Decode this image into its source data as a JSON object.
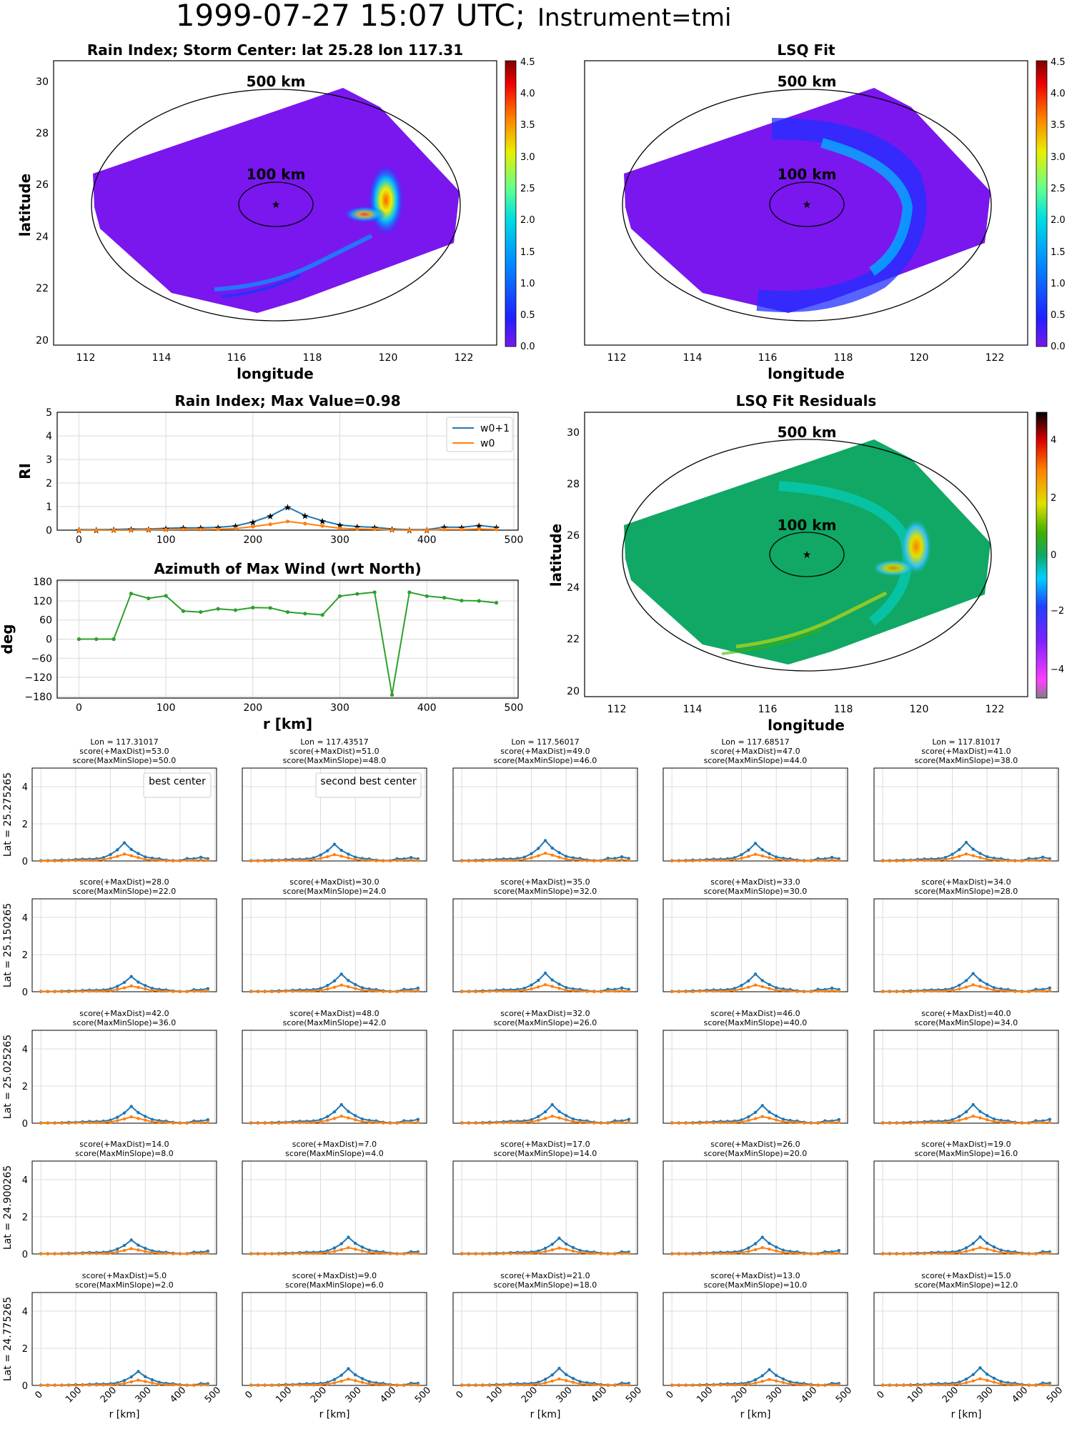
{
  "figure": {
    "title_main": "1999-07-27 15:07 UTC;",
    "title_instrument": "Instrument=tmi"
  },
  "maps": {
    "rain_index": {
      "title": "Rain Index; Storm Center: lat 25.28 lon 117.31",
      "xlabel": "longitude",
      "ylabel": "latitude",
      "circle_labels": [
        "500 km",
        "100 km"
      ],
      "colorbar_ticks": [
        "0.0",
        "0.5",
        "1.0",
        "1.5",
        "2.0",
        "2.5",
        "3.0",
        "3.5",
        "4.0",
        "4.5"
      ]
    },
    "lsq_fit": {
      "title": "LSQ Fit",
      "xlabel": "longitude",
      "circle_labels": [
        "500 km",
        "100 km"
      ],
      "colorbar_ticks": [
        "0.0",
        "0.5",
        "1.0",
        "1.5",
        "2.0",
        "2.5",
        "3.0",
        "3.5",
        "4.0",
        "4.5"
      ]
    },
    "residuals": {
      "title": "LSQ Fit Residuals",
      "xlabel": "longitude",
      "ylabel": "latitude",
      "circle_labels": [
        "500 km",
        "100 km"
      ],
      "colorbar_ticks": [
        "−4",
        "−2",
        "0",
        "2",
        "4"
      ]
    },
    "lon_ticks": [
      "112",
      "114",
      "116",
      "118",
      "120",
      "122"
    ],
    "lat_ticks": [
      "20",
      "22",
      "24",
      "26",
      "28",
      "30"
    ],
    "colors": {
      "rain_background": "#7a17ee",
      "residual_background": "#10a864"
    }
  },
  "chart_data": [
    {
      "type": "line",
      "title": "Rain Index; Max Value=0.98",
      "ylabel": "RI",
      "xlim": [
        -25,
        505
      ],
      "ylim": [
        0,
        5
      ],
      "x_ticks": [
        "0",
        "100",
        "200",
        "300",
        "400",
        "500"
      ],
      "y_ticks": [
        "0",
        "1",
        "2",
        "3",
        "4",
        "5"
      ],
      "legend": "top-right",
      "grid": true,
      "x": [
        0,
        20,
        40,
        60,
        80,
        100,
        120,
        140,
        160,
        180,
        200,
        220,
        240,
        260,
        280,
        300,
        320,
        340,
        360,
        380,
        400,
        420,
        440,
        460,
        480
      ],
      "series": [
        {
          "name": "w0+1",
          "color": "#1f77b4",
          "values": [
            0.02,
            0.02,
            0.03,
            0.05,
            0.05,
            0.08,
            0.1,
            0.1,
            0.12,
            0.18,
            0.35,
            0.6,
            0.98,
            0.62,
            0.4,
            0.22,
            0.15,
            0.12,
            0.05,
            0.02,
            0.02,
            0.13,
            0.12,
            0.2,
            0.12
          ]
        },
        {
          "name": "w0",
          "color": "#ff7f0e",
          "values": [
            0.0,
            0.0,
            0.0,
            0.0,
            0.02,
            0.02,
            0.03,
            0.03,
            0.04,
            0.07,
            0.15,
            0.25,
            0.37,
            0.28,
            0.18,
            0.08,
            0.05,
            0.04,
            0.01,
            0.0,
            0.0,
            0.03,
            0.03,
            0.05,
            0.03
          ]
        }
      ]
    },
    {
      "type": "line",
      "title": "Azimuth of Max Wind (wrt North)",
      "ylabel": "deg",
      "xlabel": "r [km]",
      "xlim": [
        -25,
        505
      ],
      "ylim": [
        -185,
        185
      ],
      "x_ticks": [
        "0",
        "100",
        "200",
        "300",
        "400",
        "500"
      ],
      "y_ticks": [
        "−180",
        "−120",
        "−60",
        "0",
        "60",
        "120",
        "180"
      ],
      "grid": true,
      "x": [
        0,
        20,
        40,
        60,
        80,
        100,
        120,
        140,
        160,
        180,
        200,
        220,
        240,
        260,
        280,
        300,
        320,
        340,
        360,
        380,
        400,
        420,
        440,
        460,
        480
      ],
      "series": [
        {
          "color": "#2ca02c",
          "values": [
            0,
            0,
            0,
            143,
            128,
            136,
            88,
            85,
            95,
            91,
            99,
            98,
            85,
            80,
            76,
            135,
            142,
            147,
            -175,
            147,
            135,
            130,
            121,
            120,
            114
          ]
        }
      ]
    },
    {
      "type": "line",
      "grid_of_small_multiples": true,
      "x_ticks": [
        "0",
        "100",
        "200",
        "300",
        "400",
        "500"
      ],
      "y_ticks": [
        "0",
        "2",
        "4"
      ],
      "xlabel": "r [km]",
      "ylim": [
        0,
        5
      ],
      "x": [
        0,
        20,
        40,
        60,
        80,
        100,
        120,
        140,
        160,
        180,
        200,
        220,
        240,
        260,
        280,
        300,
        320,
        340,
        360,
        380,
        400,
        420,
        440,
        460,
        480
      ],
      "col_headers": [
        {
          "lon_label": "Lon = 117.31017",
          "color": "#800080"
        },
        {
          "lon_label": "Lon = 117.43517",
          "color": "#ff0000"
        },
        {
          "lon_label": "Lon = 117.56017",
          "color": "#000000"
        },
        {
          "lon_label": "Lon = 117.68517",
          "color": "#000000"
        },
        {
          "lon_label": "Lon = 117.81017",
          "color": "#000000"
        }
      ],
      "row_labels": [
        "Lat = 25.275265",
        "Lat = 25.150265",
        "Lat = 25.025265",
        "Lat = 24.900265",
        "Lat = 24.775265"
      ],
      "annotations": [
        "best center",
        "second best center"
      ],
      "scores": [
        [
          [
            "score(+MaxDist)=53.0",
            "score(MaxMinSlope)=50.0"
          ],
          [
            "score(+MaxDist)=51.0",
            "score(MaxMinSlope)=48.0"
          ],
          [
            "score(+MaxDist)=49.0",
            "score(MaxMinSlope)=46.0"
          ],
          [
            "score(+MaxDist)=47.0",
            "score(MaxMinSlope)=44.0"
          ],
          [
            "score(+MaxDist)=41.0",
            "score(MaxMinSlope)=38.0"
          ]
        ],
        [
          [
            "score(+MaxDist)=28.0",
            "score(MaxMinSlope)=22.0"
          ],
          [
            "score(+MaxDist)=30.0",
            "score(MaxMinSlope)=24.0"
          ],
          [
            "score(+MaxDist)=35.0",
            "score(MaxMinSlope)=32.0"
          ],
          [
            "score(+MaxDist)=33.0",
            "score(MaxMinSlope)=30.0"
          ],
          [
            "score(+MaxDist)=34.0",
            "score(MaxMinSlope)=28.0"
          ]
        ],
        [
          [
            "score(+MaxDist)=42.0",
            "score(MaxMinSlope)=36.0"
          ],
          [
            "score(+MaxDist)=48.0",
            "score(MaxMinSlope)=42.0"
          ],
          [
            "score(+MaxDist)=32.0",
            "score(MaxMinSlope)=26.0"
          ],
          [
            "score(+MaxDist)=46.0",
            "score(MaxMinSlope)=40.0"
          ],
          [
            "score(+MaxDist)=40.0",
            "score(MaxMinSlope)=34.0"
          ]
        ],
        [
          [
            "score(+MaxDist)=14.0",
            "score(MaxMinSlope)=8.0"
          ],
          [
            "score(+MaxDist)=7.0",
            "score(MaxMinSlope)=4.0"
          ],
          [
            "score(+MaxDist)=17.0",
            "score(MaxMinSlope)=14.0"
          ],
          [
            "score(+MaxDist)=26.0",
            "score(MaxMinSlope)=20.0"
          ],
          [
            "score(+MaxDist)=19.0",
            "score(MaxMinSlope)=16.0"
          ]
        ],
        [
          [
            "score(+MaxDist)=5.0",
            "score(MaxMinSlope)=2.0"
          ],
          [
            "score(+MaxDist)=9.0",
            "score(MaxMinSlope)=6.0"
          ],
          [
            "score(+MaxDist)=21.0",
            "score(MaxMinSlope)=18.0"
          ],
          [
            "score(+MaxDist)=13.0",
            "score(MaxMinSlope)=10.0"
          ],
          [
            "score(+MaxDist)=15.0",
            "score(MaxMinSlope)=12.0"
          ]
        ]
      ],
      "peaks": [
        [
          [
            240,
            0.98
          ],
          [
            240,
            0.9
          ],
          [
            240,
            1.1
          ],
          [
            240,
            0.95
          ],
          [
            240,
            1.0
          ]
        ],
        [
          [
            260,
            0.82
          ],
          [
            260,
            0.95
          ],
          [
            240,
            1.0
          ],
          [
            240,
            0.95
          ],
          [
            260,
            0.98
          ]
        ],
        [
          [
            260,
            0.9
          ],
          [
            260,
            1.0
          ],
          [
            260,
            1.0
          ],
          [
            260,
            0.95
          ],
          [
            260,
            1.0
          ]
        ],
        [
          [
            260,
            0.75
          ],
          [
            280,
            0.9
          ],
          [
            280,
            0.85
          ],
          [
            260,
            0.9
          ],
          [
            280,
            0.92
          ]
        ],
        [
          [
            280,
            0.75
          ],
          [
            280,
            0.9
          ],
          [
            280,
            0.92
          ],
          [
            280,
            0.85
          ],
          [
            280,
            0.95
          ]
        ]
      ]
    }
  ]
}
